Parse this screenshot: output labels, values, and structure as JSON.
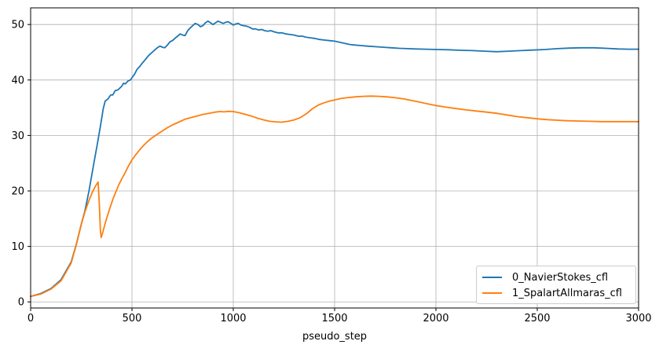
{
  "figure": {
    "background": "#ffffff"
  },
  "chart_data": {
    "type": "line",
    "title": "",
    "xlabel": "pseudo_step",
    "ylabel": "",
    "xlim": [
      0,
      3000
    ],
    "ylim": [
      -1.1,
      53.0
    ],
    "x_ticks": [
      "0",
      "500",
      "1000",
      "1500",
      "2000",
      "2500",
      "3000"
    ],
    "x_tick_values": [
      0,
      500,
      1000,
      1500,
      2000,
      2500,
      3000
    ],
    "y_ticks": [
      "0",
      "10",
      "20",
      "30",
      "40",
      "50"
    ],
    "y_tick_values": [
      0,
      10,
      20,
      30,
      40,
      50
    ],
    "grid": true,
    "grid_color": "#b0b0b0",
    "spine_color": "#000000",
    "legend_position": "lower right",
    "legend_border_color": "#cccccc",
    "series": [
      {
        "name": "0_NavierStokes_cfl",
        "color": "#1f77b4",
        "points": [
          [
            0,
            1.0
          ],
          [
            50,
            1.5
          ],
          [
            100,
            2.4
          ],
          [
            150,
            4.0
          ],
          [
            200,
            7.2
          ],
          [
            225,
            10.3
          ],
          [
            250,
            14.0
          ],
          [
            268,
            16.4
          ],
          [
            288,
            20.0
          ],
          [
            310,
            24.6
          ],
          [
            330,
            28.6
          ],
          [
            345,
            31.8
          ],
          [
            358,
            34.8
          ],
          [
            368,
            36.2
          ],
          [
            382,
            36.6
          ],
          [
            395,
            37.3
          ],
          [
            405,
            37.3
          ],
          [
            418,
            38.1
          ],
          [
            430,
            38.2
          ],
          [
            442,
            38.6
          ],
          [
            450,
            38.9
          ],
          [
            458,
            39.4
          ],
          [
            468,
            39.3
          ],
          [
            480,
            39.8
          ],
          [
            492,
            40.0
          ],
          [
            500,
            40.4
          ],
          [
            512,
            41.0
          ],
          [
            525,
            41.9
          ],
          [
            538,
            42.4
          ],
          [
            550,
            43.0
          ],
          [
            562,
            43.5
          ],
          [
            575,
            44.1
          ],
          [
            588,
            44.6
          ],
          [
            600,
            45.0
          ],
          [
            612,
            45.4
          ],
          [
            625,
            45.8
          ],
          [
            638,
            46.1
          ],
          [
            650,
            45.9
          ],
          [
            662,
            45.8
          ],
          [
            675,
            46.3
          ],
          [
            688,
            46.9
          ],
          [
            700,
            47.1
          ],
          [
            712,
            47.5
          ],
          [
            725,
            47.9
          ],
          [
            738,
            48.3
          ],
          [
            750,
            48.1
          ],
          [
            762,
            48.0
          ],
          [
            775,
            48.9
          ],
          [
            788,
            49.4
          ],
          [
            800,
            49.8
          ],
          [
            812,
            50.2
          ],
          [
            825,
            50.0
          ],
          [
            838,
            49.6
          ],
          [
            850,
            49.8
          ],
          [
            862,
            50.3
          ],
          [
            875,
            50.6
          ],
          [
            888,
            50.3
          ],
          [
            900,
            50.0
          ],
          [
            912,
            50.3
          ],
          [
            925,
            50.6
          ],
          [
            938,
            50.4
          ],
          [
            950,
            50.2
          ],
          [
            962,
            50.4
          ],
          [
            975,
            50.5
          ],
          [
            988,
            50.2
          ],
          [
            1000,
            49.9
          ],
          [
            1012,
            50.1
          ],
          [
            1025,
            50.2
          ],
          [
            1038,
            49.9
          ],
          [
            1050,
            49.8
          ],
          [
            1065,
            49.7
          ],
          [
            1080,
            49.5
          ],
          [
            1095,
            49.2
          ],
          [
            1110,
            49.2
          ],
          [
            1125,
            49.0
          ],
          [
            1140,
            49.1
          ],
          [
            1155,
            48.9
          ],
          [
            1170,
            48.8
          ],
          [
            1185,
            48.9
          ],
          [
            1200,
            48.7
          ],
          [
            1220,
            48.5
          ],
          [
            1240,
            48.5
          ],
          [
            1260,
            48.3
          ],
          [
            1280,
            48.2
          ],
          [
            1300,
            48.1
          ],
          [
            1320,
            47.9
          ],
          [
            1340,
            47.9
          ],
          [
            1360,
            47.7
          ],
          [
            1380,
            47.6
          ],
          [
            1400,
            47.5
          ],
          [
            1425,
            47.3
          ],
          [
            1450,
            47.2
          ],
          [
            1475,
            47.1
          ],
          [
            1500,
            47.0
          ],
          [
            1525,
            46.8
          ],
          [
            1550,
            46.6
          ],
          [
            1575,
            46.4
          ],
          [
            1600,
            46.3
          ],
          [
            1630,
            46.2
          ],
          [
            1660,
            46.1
          ],
          [
            1700,
            46.0
          ],
          [
            1740,
            45.9
          ],
          [
            1780,
            45.8
          ],
          [
            1820,
            45.7
          ],
          [
            1860,
            45.65
          ],
          [
            1900,
            45.6
          ],
          [
            1950,
            45.55
          ],
          [
            2000,
            45.5
          ],
          [
            2060,
            45.45
          ],
          [
            2120,
            45.35
          ],
          [
            2180,
            45.3
          ],
          [
            2240,
            45.2
          ],
          [
            2300,
            45.1
          ],
          [
            2360,
            45.2
          ],
          [
            2420,
            45.3
          ],
          [
            2480,
            45.4
          ],
          [
            2540,
            45.5
          ],
          [
            2600,
            45.65
          ],
          [
            2660,
            45.75
          ],
          [
            2720,
            45.8
          ],
          [
            2780,
            45.8
          ],
          [
            2840,
            45.7
          ],
          [
            2900,
            45.6
          ],
          [
            2950,
            45.55
          ],
          [
            3000,
            45.55
          ]
        ]
      },
      {
        "name": "1_SpalartAllmaras_cfl",
        "color": "#ff7f0e",
        "points": [
          [
            0,
            1.0
          ],
          [
            50,
            1.4
          ],
          [
            100,
            2.3
          ],
          [
            150,
            3.8
          ],
          [
            200,
            7.0
          ],
          [
            225,
            10.2
          ],
          [
            250,
            14.0
          ],
          [
            268,
            16.2
          ],
          [
            288,
            18.3
          ],
          [
            305,
            19.8
          ],
          [
            320,
            20.9
          ],
          [
            333,
            21.6
          ],
          [
            339,
            17.5
          ],
          [
            344,
            13.0
          ],
          [
            348,
            11.6
          ],
          [
            355,
            12.4
          ],
          [
            365,
            13.8
          ],
          [
            378,
            15.4
          ],
          [
            392,
            17.0
          ],
          [
            406,
            18.5
          ],
          [
            420,
            19.8
          ],
          [
            435,
            21.1
          ],
          [
            450,
            22.2
          ],
          [
            465,
            23.2
          ],
          [
            480,
            24.3
          ],
          [
            500,
            25.6
          ],
          [
            520,
            26.6
          ],
          [
            540,
            27.5
          ],
          [
            560,
            28.3
          ],
          [
            580,
            29.0
          ],
          [
            600,
            29.6
          ],
          [
            620,
            30.1
          ],
          [
            645,
            30.7
          ],
          [
            670,
            31.3
          ],
          [
            700,
            31.9
          ],
          [
            730,
            32.4
          ],
          [
            760,
            32.9
          ],
          [
            790,
            33.2
          ],
          [
            820,
            33.5
          ],
          [
            850,
            33.8
          ],
          [
            880,
            34.0
          ],
          [
            910,
            34.2
          ],
          [
            935,
            34.3
          ],
          [
            955,
            34.25
          ],
          [
            975,
            34.35
          ],
          [
            1000,
            34.3
          ],
          [
            1030,
            34.1
          ],
          [
            1060,
            33.8
          ],
          [
            1090,
            33.5
          ],
          [
            1120,
            33.1
          ],
          [
            1150,
            32.8
          ],
          [
            1180,
            32.55
          ],
          [
            1210,
            32.45
          ],
          [
            1240,
            32.4
          ],
          [
            1270,
            32.55
          ],
          [
            1300,
            32.8
          ],
          [
            1330,
            33.2
          ],
          [
            1360,
            33.9
          ],
          [
            1390,
            34.8
          ],
          [
            1420,
            35.5
          ],
          [
            1450,
            35.9
          ],
          [
            1475,
            36.2
          ],
          [
            1500,
            36.4
          ],
          [
            1530,
            36.65
          ],
          [
            1560,
            36.8
          ],
          [
            1600,
            36.95
          ],
          [
            1640,
            37.05
          ],
          [
            1680,
            37.1
          ],
          [
            1720,
            37.05
          ],
          [
            1760,
            36.95
          ],
          [
            1800,
            36.8
          ],
          [
            1840,
            36.6
          ],
          [
            1880,
            36.3
          ],
          [
            1920,
            36.0
          ],
          [
            1960,
            35.7
          ],
          [
            2000,
            35.4
          ],
          [
            2050,
            35.1
          ],
          [
            2100,
            34.85
          ],
          [
            2150,
            34.6
          ],
          [
            2200,
            34.4
          ],
          [
            2250,
            34.2
          ],
          [
            2300,
            34.0
          ],
          [
            2350,
            33.7
          ],
          [
            2400,
            33.4
          ],
          [
            2450,
            33.2
          ],
          [
            2500,
            33.0
          ],
          [
            2550,
            32.85
          ],
          [
            2600,
            32.75
          ],
          [
            2650,
            32.65
          ],
          [
            2700,
            32.6
          ],
          [
            2760,
            32.55
          ],
          [
            2820,
            32.5
          ],
          [
            2880,
            32.5
          ],
          [
            2940,
            32.5
          ],
          [
            3000,
            32.5
          ]
        ]
      }
    ]
  }
}
